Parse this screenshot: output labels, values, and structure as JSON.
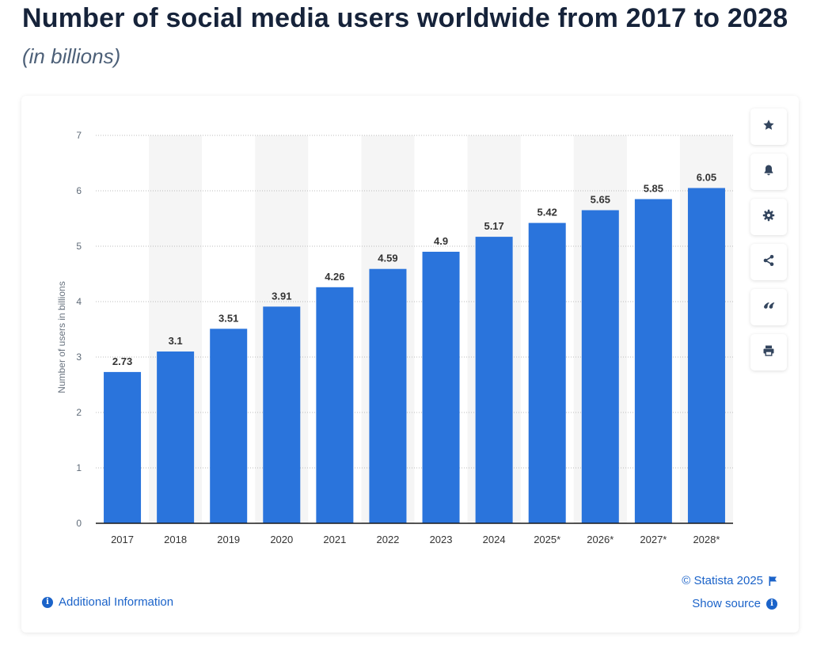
{
  "page": {
    "title": "Number of social media users worldwide from 2017 to 2028",
    "subtitle": "(in billions)"
  },
  "chart_data": {
    "type": "bar",
    "categories": [
      "2017",
      "2018",
      "2019",
      "2020",
      "2021",
      "2022",
      "2023",
      "2024",
      "2025*",
      "2026*",
      "2027*",
      "2028*"
    ],
    "values": [
      2.73,
      3.1,
      3.51,
      3.91,
      4.26,
      4.59,
      4.9,
      5.17,
      5.42,
      5.65,
      5.85,
      6.05
    ],
    "value_labels": [
      "2.73",
      "3.1",
      "3.51",
      "3.91",
      "4.26",
      "4.59",
      "4.9",
      "5.17",
      "5.42",
      "5.65",
      "5.85",
      "6.05"
    ],
    "ylabel": "Number of users in billions",
    "ylim": [
      0,
      7
    ],
    "yticks": [
      "0",
      "1",
      "2",
      "3",
      "4",
      "5",
      "6",
      "7"
    ],
    "grid": true,
    "bar_color": "#2a74dc",
    "alt_band_color": "#f5f5f5"
  },
  "toolbar": {
    "buttons": [
      {
        "icon": "star-icon",
        "name": "favorite-button"
      },
      {
        "icon": "bell-icon",
        "name": "notification-button"
      },
      {
        "icon": "gear-icon",
        "name": "settings-button"
      },
      {
        "icon": "share-icon",
        "name": "share-button"
      },
      {
        "icon": "quote-icon",
        "name": "cite-button"
      },
      {
        "icon": "print-icon",
        "name": "print-button"
      }
    ]
  },
  "footer": {
    "copyright": "© Statista 2025",
    "show_source": "Show source",
    "additional_info": "Additional Information",
    "link_color": "#1b63c9"
  }
}
